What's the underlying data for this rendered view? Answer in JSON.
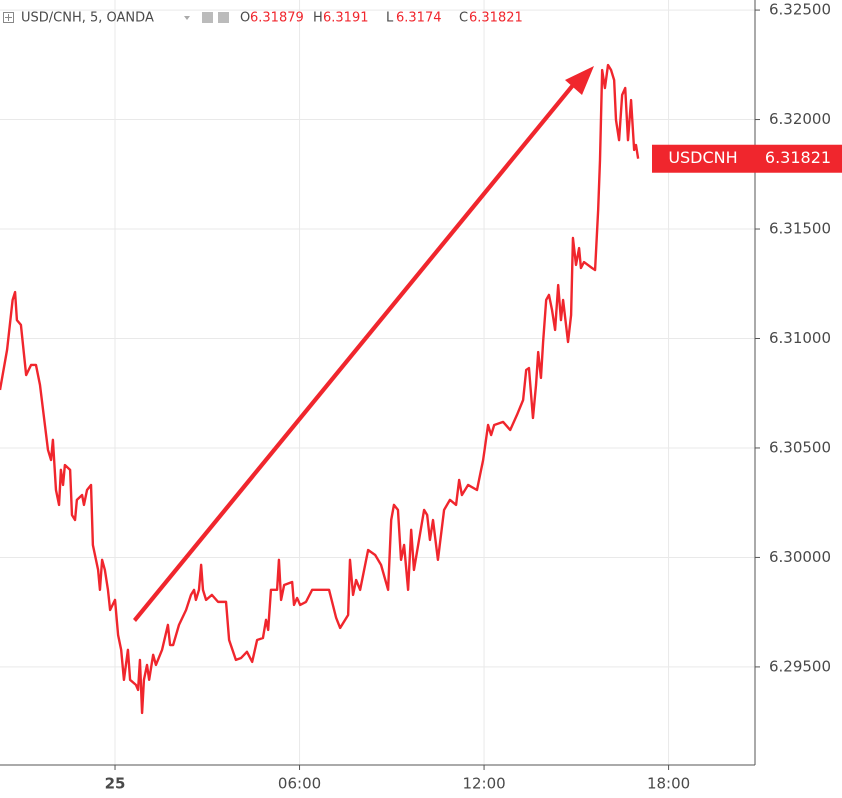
{
  "chart_data": {
    "type": "line",
    "title": "USD/CNH, 5, OANDA",
    "ohlc": [
      {
        "label": "O",
        "value": 6.31879
      },
      {
        "label": "H",
        "value": 6.3191
      },
      {
        "label": "L",
        "value": 6.3174
      },
      {
        "label": "C",
        "value": 6.31821
      }
    ],
    "x": [
      -3.74,
      -3.51,
      -3.33,
      -3.25,
      -3.19,
      -3.06,
      -2.89,
      -2.73,
      -2.57,
      -2.44,
      -2.34,
      -2.18,
      -2.08,
      -2.02,
      -1.92,
      -1.82,
      -1.76,
      -1.69,
      -1.63,
      -1.46,
      -1.4,
      -1.3,
      -1.24,
      -1.07,
      -1.01,
      -0.91,
      -0.78,
      -0.72,
      -0.55,
      -0.49,
      -0.42,
      -0.33,
      -0.23,
      -0.16,
      0,
      0.1,
      0.2,
      0.29,
      0.42,
      0.49,
      0.68,
      0.75,
      0.81,
      0.88,
      0.94,
      1.04,
      1.11,
      1.24,
      1.33,
      1.53,
      1.72,
      1.79,
      1.89,
      2.08,
      2.31,
      2.47,
      2.57,
      2.63,
      2.73,
      2.8,
      2.86,
      2.96,
      3.15,
      3.35,
      3.61,
      3.71,
      3.93,
      4.1,
      4.29,
      4.46,
      4.62,
      4.81,
      4.91,
      4.98,
      5.07,
      5.27,
      5.33,
      5.4,
      5.5,
      5.76,
      5.82,
      5.92,
      6.02,
      6.21,
      6.41,
      6.96,
      7.19,
      7.32,
      7.58,
      7.64,
      7.74,
      7.84,
      7.97,
      8.23,
      8.46,
      8.65,
      8.88,
      8.98,
      9.07,
      9.2,
      9.3,
      9.4,
      9.53,
      9.63,
      9.72,
      10.05,
      10.15,
      10.24,
      10.34,
      10.5,
      10.7,
      10.89,
      11.09,
      11.19,
      11.28,
      11.48,
      11.77,
      11.87,
      11.97,
      12.13,
      12.23,
      12.33,
      12.62,
      12.85,
      13.07,
      13.27,
      13.37,
      13.46,
      13.59,
      13.69,
      13.76,
      13.85,
      13.92,
      14.02,
      14.11,
      14.21,
      14.31,
      14.41,
      14.5,
      14.57,
      14.73,
      14.83,
      14.89,
      14.99,
      15.09,
      15.15,
      15.25,
      15.51,
      15.61,
      15.71,
      15.77,
      15.84,
      15.93,
      16.03,
      16.13,
      16.23,
      16.29,
      16.39,
      16.49,
      16.59,
      16.68,
      16.78,
      16.88,
      16.94,
      17.01
    ],
    "series": [
      {
        "name": "USDCNH",
        "color": "#f0262d",
        "values": [
          6.30765,
          6.30948,
          6.31176,
          6.31212,
          6.31084,
          6.31062,
          6.30833,
          6.30879,
          6.30879,
          6.30788,
          6.30674,
          6.30491,
          6.30445,
          6.30537,
          6.30308,
          6.3024,
          6.304,
          6.30331,
          6.30422,
          6.304,
          6.30194,
          6.30171,
          6.30263,
          6.30285,
          6.3024,
          6.30308,
          6.30331,
          6.30057,
          6.29943,
          6.29852,
          6.29989,
          6.29943,
          6.29852,
          6.2976,
          6.29806,
          6.29646,
          6.29578,
          6.29441,
          6.29578,
          6.29441,
          6.29418,
          6.29395,
          6.29532,
          6.2929,
          6.29441,
          6.29509,
          6.29441,
          6.29555,
          6.29509,
          6.29578,
          6.29692,
          6.296,
          6.296,
          6.29692,
          6.2976,
          6.29829,
          6.29852,
          6.29806,
          6.29852,
          6.29966,
          6.29852,
          6.29806,
          6.29829,
          6.29797,
          6.29797,
          6.29623,
          6.29532,
          6.29541,
          6.29569,
          6.29523,
          6.29623,
          6.29632,
          6.29715,
          6.29669,
          6.29852,
          6.29852,
          6.29989,
          6.29806,
          6.29874,
          6.29888,
          6.29783,
          6.29815,
          6.29783,
          6.29797,
          6.29852,
          6.29852,
          6.29724,
          6.29678,
          6.29737,
          6.29989,
          6.29829,
          6.29897,
          6.29852,
          6.30034,
          6.30011,
          6.29966,
          6.29852,
          6.30171,
          6.3024,
          6.30217,
          6.29989,
          6.30057,
          6.29852,
          6.30126,
          6.29943,
          6.30217,
          6.30194,
          6.3008,
          6.30171,
          6.29989,
          6.30217,
          6.30263,
          6.3024,
          6.30354,
          6.30285,
          6.30331,
          6.30308,
          6.30377,
          6.30445,
          6.30605,
          6.30559,
          6.30605,
          6.30619,
          6.30582,
          6.30651,
          6.30719,
          6.30856,
          6.30865,
          6.30637,
          6.30788,
          6.30938,
          6.3082,
          6.30984,
          6.31176,
          6.31199,
          6.3113,
          6.31039,
          6.31244,
          6.31084,
          6.31176,
          6.30984,
          6.31107,
          6.31459,
          6.31336,
          6.31413,
          6.31322,
          6.31349,
          6.31322,
          6.31313,
          6.31587,
          6.31815,
          6.32226,
          6.32144,
          6.32249,
          6.32226,
          6.3218,
          6.31998,
          6.31906,
          6.32112,
          6.32144,
          6.31906,
          6.32089,
          6.31861,
          6.31884,
          6.31821
        ]
      }
    ],
    "last_value": {
      "value": 6.31821,
      "label": "6.31821"
    },
    "xlim": [
      -3.74,
      20.81
    ],
    "xticks": [
      {
        "value": 0,
        "label": "25"
      },
      {
        "value": 6,
        "label": "06:00"
      },
      {
        "value": 12,
        "label": "12:00"
      },
      {
        "value": 18,
        "label": "18:00"
      }
    ],
    "ylim": [
      6.29052,
      6.32546
    ],
    "yticks": [
      {
        "value": 6.295,
        "label": "6.29500"
      },
      {
        "value": 6.3,
        "label": "6.30000"
      },
      {
        "value": 6.305,
        "label": "6.30500"
      },
      {
        "value": 6.31,
        "label": "6.31000"
      },
      {
        "value": 6.315,
        "label": "6.31500"
      },
      {
        "value": 6.32,
        "label": "6.32000"
      },
      {
        "value": 6.325,
        "label": "6.32500"
      }
    ],
    "grid": true
  }
}
